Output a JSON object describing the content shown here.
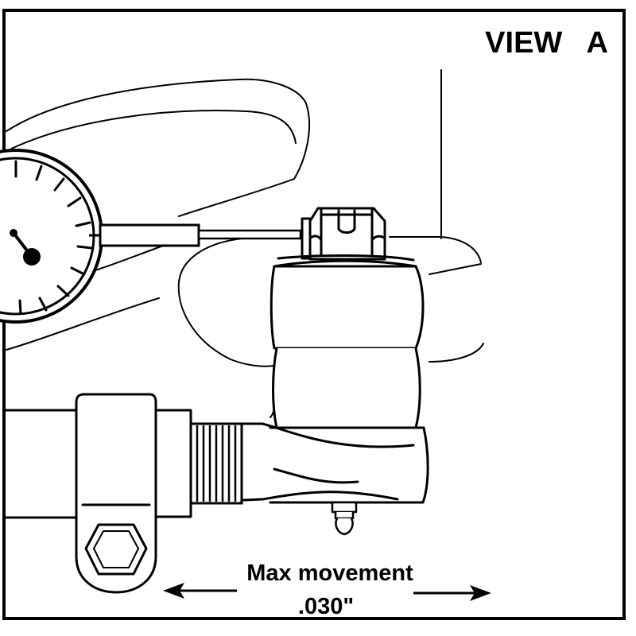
{
  "view_label": "VIEW   A",
  "movement_label": "Max movement",
  "movement_value": ".030\"",
  "dial_indicator": {
    "icon": "dial-indicator-icon"
  },
  "components": [
    "dial-indicator",
    "tie-rod-end",
    "adjusting-sleeve",
    "clamp",
    "castle-nut",
    "grease-fitting",
    "steering-knuckle"
  ]
}
